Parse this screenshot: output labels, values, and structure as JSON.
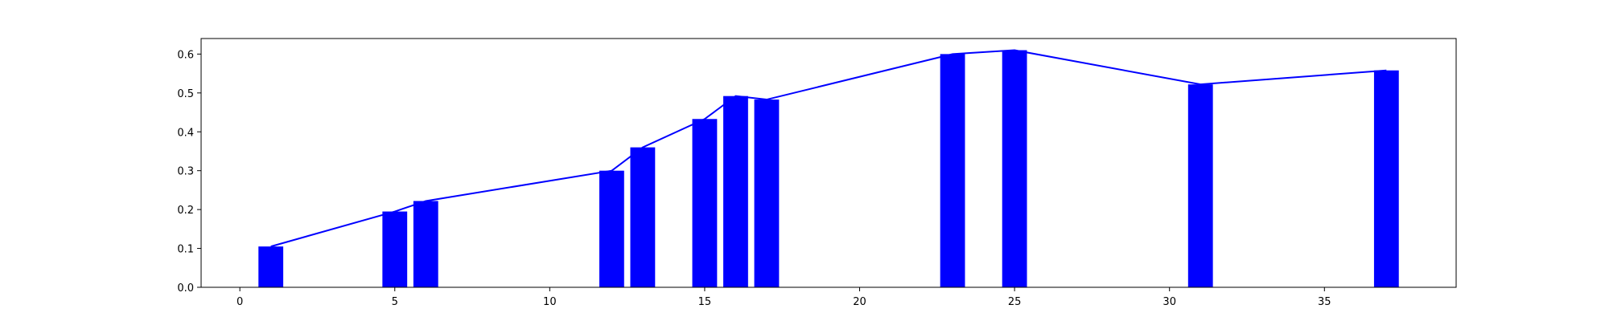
{
  "chart_data": {
    "type": "bar",
    "title": "",
    "xlabel": "",
    "ylabel": "",
    "xlim": [
      -1.25,
      39.25
    ],
    "ylim": [
      0,
      0.64
    ],
    "grid": false,
    "x_ticks": [
      0,
      5,
      10,
      15,
      20,
      25,
      30,
      35
    ],
    "y_ticks": [
      0.0,
      0.1,
      0.2,
      0.3,
      0.4,
      0.5,
      0.6
    ],
    "y_tick_labels": [
      "0.0",
      "0.1",
      "0.2",
      "0.3",
      "0.4",
      "0.5",
      "0.6"
    ],
    "bar_width": 0.8,
    "series": [
      {
        "type": "bar",
        "color": "#0000ff",
        "x": [
          1,
          5,
          6,
          12,
          13,
          15,
          16,
          17,
          23,
          25,
          31,
          37
        ],
        "values": [
          0.105,
          0.195,
          0.222,
          0.3,
          0.36,
          0.433,
          0.492,
          0.483,
          0.6,
          0.61,
          0.522,
          0.558
        ]
      },
      {
        "type": "line",
        "color": "#0000ff",
        "x": [
          1,
          5,
          6,
          12,
          13,
          15,
          16,
          17,
          23,
          25,
          31,
          37
        ],
        "values": [
          0.105,
          0.195,
          0.222,
          0.3,
          0.36,
          0.433,
          0.492,
          0.483,
          0.6,
          0.61,
          0.522,
          0.558
        ]
      }
    ]
  }
}
